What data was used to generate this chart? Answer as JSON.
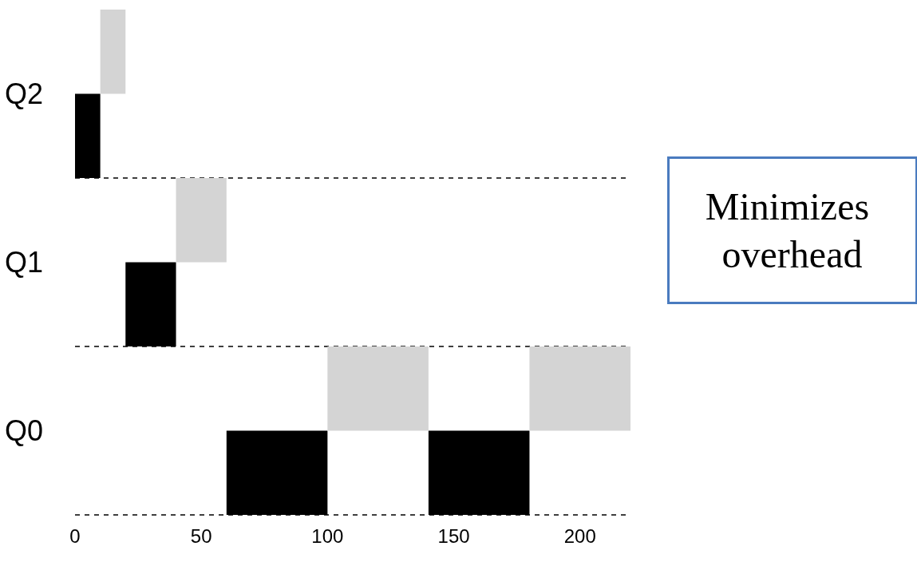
{
  "chart_data": {
    "type": "bar",
    "orientation": "horizontal",
    "categories": [
      "Q2",
      "Q1",
      "Q0"
    ],
    "series": [
      {
        "color": "#000000",
        "values": [
          10,
          20,
          40
        ],
        "base": [
          0,
          20,
          60
        ]
      },
      {
        "color": "#d4d4d4",
        "values": [
          10,
          20,
          40
        ],
        "base": [
          10,
          40,
          100
        ]
      },
      {
        "color": "#000000",
        "values": [
          null,
          null,
          40
        ],
        "base": [
          null,
          null,
          140
        ]
      },
      {
        "color": "#d4d4d4",
        "values": [
          null,
          null,
          40
        ],
        "base": [
          null,
          null,
          180
        ]
      }
    ],
    "xlim": [
      0,
      220
    ],
    "xticks": [
      0,
      50,
      100,
      150,
      200
    ],
    "grid": "y",
    "annotations": [
      "Minimizes overhead"
    ]
  }
}
